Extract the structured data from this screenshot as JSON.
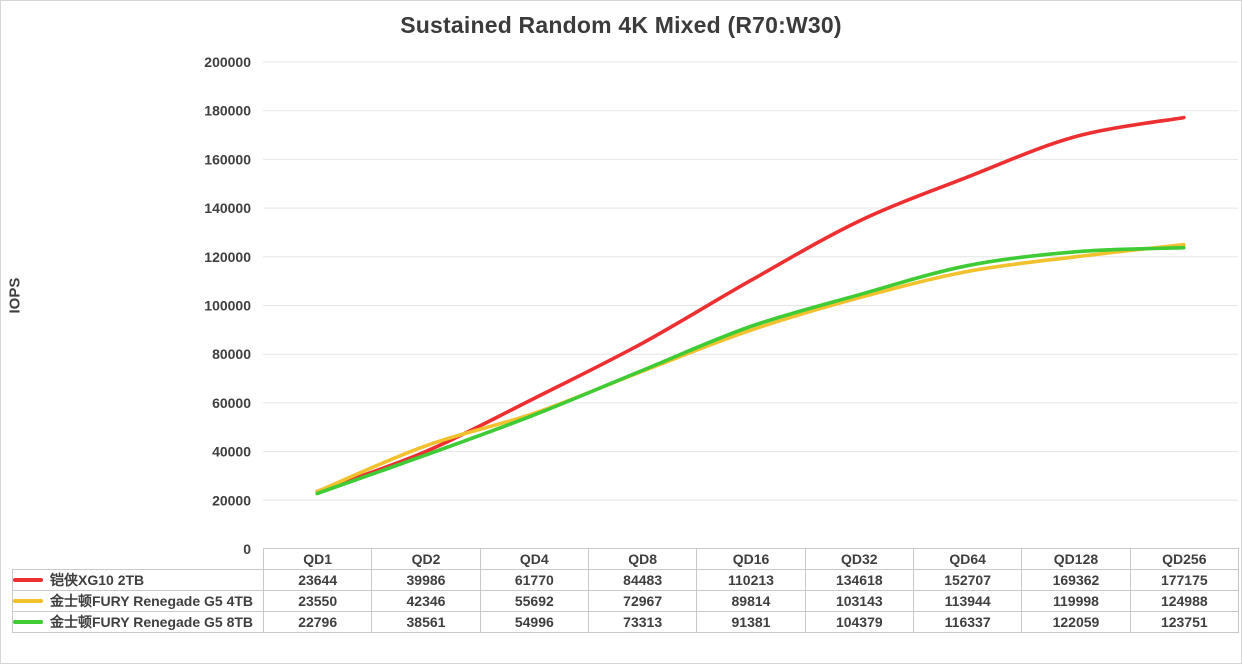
{
  "chart_data": {
    "type": "line",
    "title": "Sustained Random 4K Mixed (R70:W30)",
    "ylabel": "IOPS",
    "xlabel": "",
    "categories": [
      "QD1",
      "QD2",
      "QD4",
      "QD8",
      "QD16",
      "QD32",
      "QD64",
      "QD128",
      "QD256"
    ],
    "series": [
      {
        "name": "铠侠XG10 2TB",
        "color": "#ee2f31",
        "values": [
          23644,
          39986,
          61770,
          84483,
          110213,
          134618,
          152707,
          169362,
          177175
        ]
      },
      {
        "name": "金士顿FURY Renegade G5 4TB",
        "color": "#f2c12e",
        "values": [
          23550,
          42346,
          55692,
          72967,
          89814,
          103143,
          113944,
          119998,
          124988
        ]
      },
      {
        "name": "金士顿FURY Renegade G5 8TB",
        "color": "#3ecb35",
        "values": [
          22796,
          38561,
          54996,
          73313,
          91381,
          104379,
          116337,
          122059,
          123751
        ]
      }
    ],
    "ylim": [
      0,
      200000
    ],
    "ytick_step": 20000,
    "grid": "horizontal",
    "smooth_lines": true,
    "legend_position": "table-left-column"
  }
}
